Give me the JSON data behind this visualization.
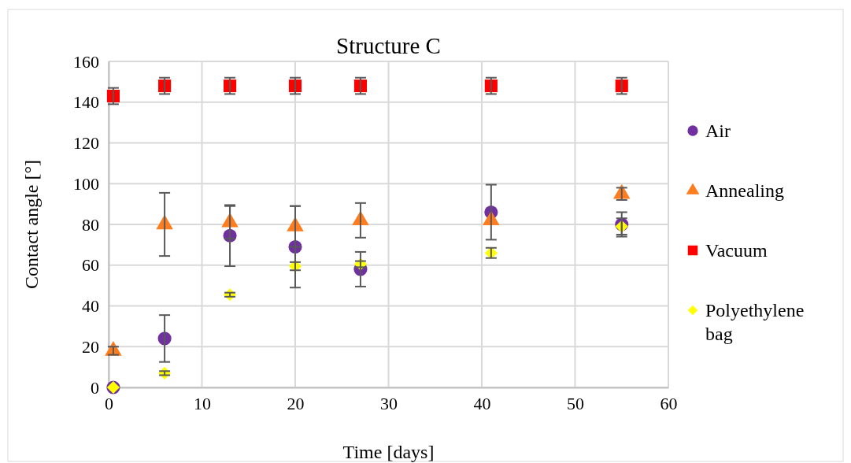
{
  "chart_data": {
    "type": "scatter",
    "title": "Structure C",
    "xlabel": "Time [days]",
    "ylabel": "Contact angle [°]",
    "x": [
      0.5,
      6,
      13,
      20,
      27,
      41,
      55
    ],
    "xlim": [
      0,
      60
    ],
    "xticks": [
      0,
      10,
      20,
      30,
      40,
      50,
      60
    ],
    "ylim": [
      0,
      160
    ],
    "yticks": [
      0,
      20,
      40,
      60,
      80,
      100,
      120,
      140,
      160
    ],
    "grid": true,
    "legend": "right",
    "series": [
      {
        "name": "Air",
        "color": "#7030a0",
        "marker": "circle",
        "values": [
          0,
          24,
          74.5,
          69,
          58,
          86,
          80
        ],
        "errors": [
          null,
          11.5,
          15,
          20,
          8.5,
          13.5,
          6
        ]
      },
      {
        "name": "Annealing",
        "color": "#ff7c1f",
        "marker": "triangle",
        "values": [
          18,
          80,
          81,
          79,
          82,
          82,
          95
        ],
        "errors": [
          2,
          15.5,
          8,
          10,
          8.5,
          null,
          3
        ]
      },
      {
        "name": "Vacuum",
        "color": "#ff0000",
        "marker": "square",
        "values": [
          143,
          148,
          148,
          148,
          148,
          148,
          148
        ],
        "errors": [
          4,
          4,
          4,
          4,
          4,
          4,
          4
        ]
      },
      {
        "name": "Polyethylene bag",
        "color": "#ffff00",
        "marker": "diamond",
        "values": [
          0,
          7,
          45.5,
          59.5,
          60.5,
          66,
          79
        ],
        "errors": [
          null,
          1,
          1,
          2,
          1.5,
          2.5,
          4
        ]
      }
    ]
  }
}
